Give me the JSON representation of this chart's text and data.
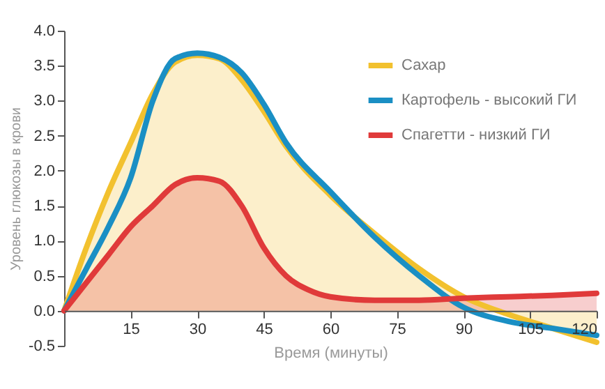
{
  "chart_data": {
    "type": "line",
    "xlabel": "Время (минуты)",
    "ylabel": "Уровень глюкозы в крови",
    "xlim": [
      0,
      120
    ],
    "xticks": [
      15,
      30,
      45,
      60,
      75,
      90,
      105,
      120
    ],
    "ylim": [
      -0.5,
      4.0
    ],
    "yticks": [
      {
        "value": -0.5,
        "label": "-0.5"
      },
      {
        "value": 0,
        "label": "0.0"
      },
      0.5,
      {
        "value": 1,
        "label": "1.0"
      },
      1.5,
      {
        "value": 2,
        "label": "2.0"
      },
      2.5,
      {
        "value": 3,
        "label": "3.0"
      },
      3.5,
      {
        "value": 4,
        "label": "4.0"
      }
    ],
    "grid": false,
    "legend": "top right",
    "series": [
      {
        "name": "Сахар",
        "type": "area",
        "color": "#f2c12e",
        "x": [
          0,
          5,
          10,
          15,
          20,
          25,
          30,
          35,
          40,
          45,
          50,
          60,
          70,
          80,
          90,
          100,
          110,
          120
        ],
        "values": [
          0,
          0.9,
          1.7,
          2.4,
          3.1,
          3.55,
          3.65,
          3.6,
          3.3,
          2.85,
          2.35,
          1.65,
          1.1,
          0.6,
          0.2,
          -0.05,
          -0.25,
          -0.45
        ]
      },
      {
        "name": "Картофель - высокий ГИ",
        "color": "#1a8fc4",
        "x": [
          0,
          5,
          10,
          15,
          20,
          25,
          30,
          35,
          40,
          45,
          50,
          60,
          70,
          80,
          90,
          100,
          110,
          120
        ],
        "values": [
          0,
          0.6,
          1.2,
          1.9,
          3.0,
          3.6,
          3.68,
          3.62,
          3.4,
          2.95,
          2.4,
          1.7,
          1.05,
          0.5,
          0.05,
          -0.15,
          -0.25,
          -0.35
        ]
      },
      {
        "name": "Спагетти - низкий ГИ",
        "type": "area",
        "color": "#e03a3a",
        "x": [
          0,
          5,
          10,
          15,
          20,
          25,
          30,
          35,
          40,
          45,
          50,
          55,
          60,
          70,
          80,
          90,
          100,
          110,
          120
        ],
        "values": [
          0,
          0.4,
          0.8,
          1.2,
          1.5,
          1.8,
          1.9,
          1.85,
          1.5,
          0.9,
          0.5,
          0.3,
          0.2,
          0.15,
          0.15,
          0.18,
          0.2,
          0.22,
          0.25
        ]
      }
    ]
  }
}
